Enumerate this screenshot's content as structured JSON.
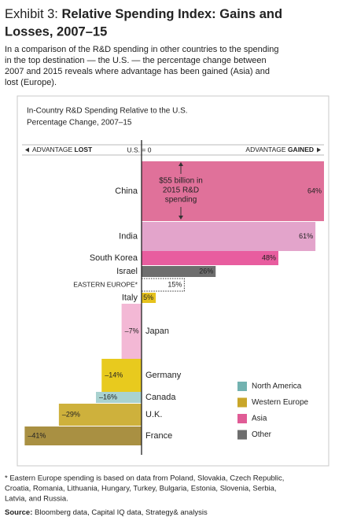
{
  "title_prefix": "Exhibit 3:",
  "title_lines": [
    "Relative Spending Index: Gains and",
    "Losses, 2007–15"
  ],
  "subtitle_lines": [
    "In a comparison of the R&D spending in other countries to the spending",
    "in the top destination — the U.S. — the percentage change between",
    "2007 and 2015 reveals where advantage has been gained (Asia) and",
    "lost (Europe)."
  ],
  "chart_data": {
    "type": "bar",
    "orientation": "horizontal",
    "title_lines": [
      "In-Country R&D Spending Relative to the U.S.",
      "Percentage Change, 2007–15"
    ],
    "axis_left_label": [
      "ADVANTAGE ",
      "LOST"
    ],
    "axis_zero_label": "U.S. = 0",
    "axis_right_label": [
      "ADVANTAGE ",
      "GAINED"
    ],
    "categories": [
      "China",
      "India",
      "South Korea",
      "Israel",
      "EASTERN EUROPE*",
      "Italy",
      "Japan",
      "Germany",
      "Canada",
      "U.K.",
      "France"
    ],
    "values": [
      64,
      61,
      48,
      26,
      15,
      5,
      -7,
      -14,
      -16,
      -29,
      -41
    ],
    "value_labels": [
      "64%",
      "61%",
      "48%",
      "26%",
      "15%",
      "5%",
      "–7%",
      "–14%",
      "–16%",
      "–29%",
      "–41%"
    ],
    "colors": [
      "#e0719a",
      "#e3a4cb",
      "#e85d9f",
      "#6e6e6e",
      "none",
      "#e6c21d",
      "#f3b8d5",
      "#e8ca1e",
      "#a9d2d0",
      "#ceb13c",
      "#a99042"
    ],
    "xlim": [
      -42,
      64
    ],
    "annotation_lines": [
      "$55 billion in",
      "2015 R&D",
      "spending"
    ],
    "legend": [
      {
        "name": "North America",
        "color": "#72b2b0"
      },
      {
        "name": "Western Europe",
        "color": "#c9a62a"
      },
      {
        "name": "Asia",
        "color": "#e05c96"
      },
      {
        "name": "Other",
        "color": "#6e6e6e"
      }
    ]
  },
  "footnote_lines": [
    "* Eastern Europe spending is based on data from Poland, Slovakia, Czech Republic,",
    "Croatia, Romania, Lithuania, Hungary, Turkey, Bulgaria, Estonia, Slovenia, Serbia,",
    "Latvia, and Russia."
  ],
  "source_label": "Source:",
  "source": " Bloomberg data, Capital IQ data, Strategy& analysis"
}
